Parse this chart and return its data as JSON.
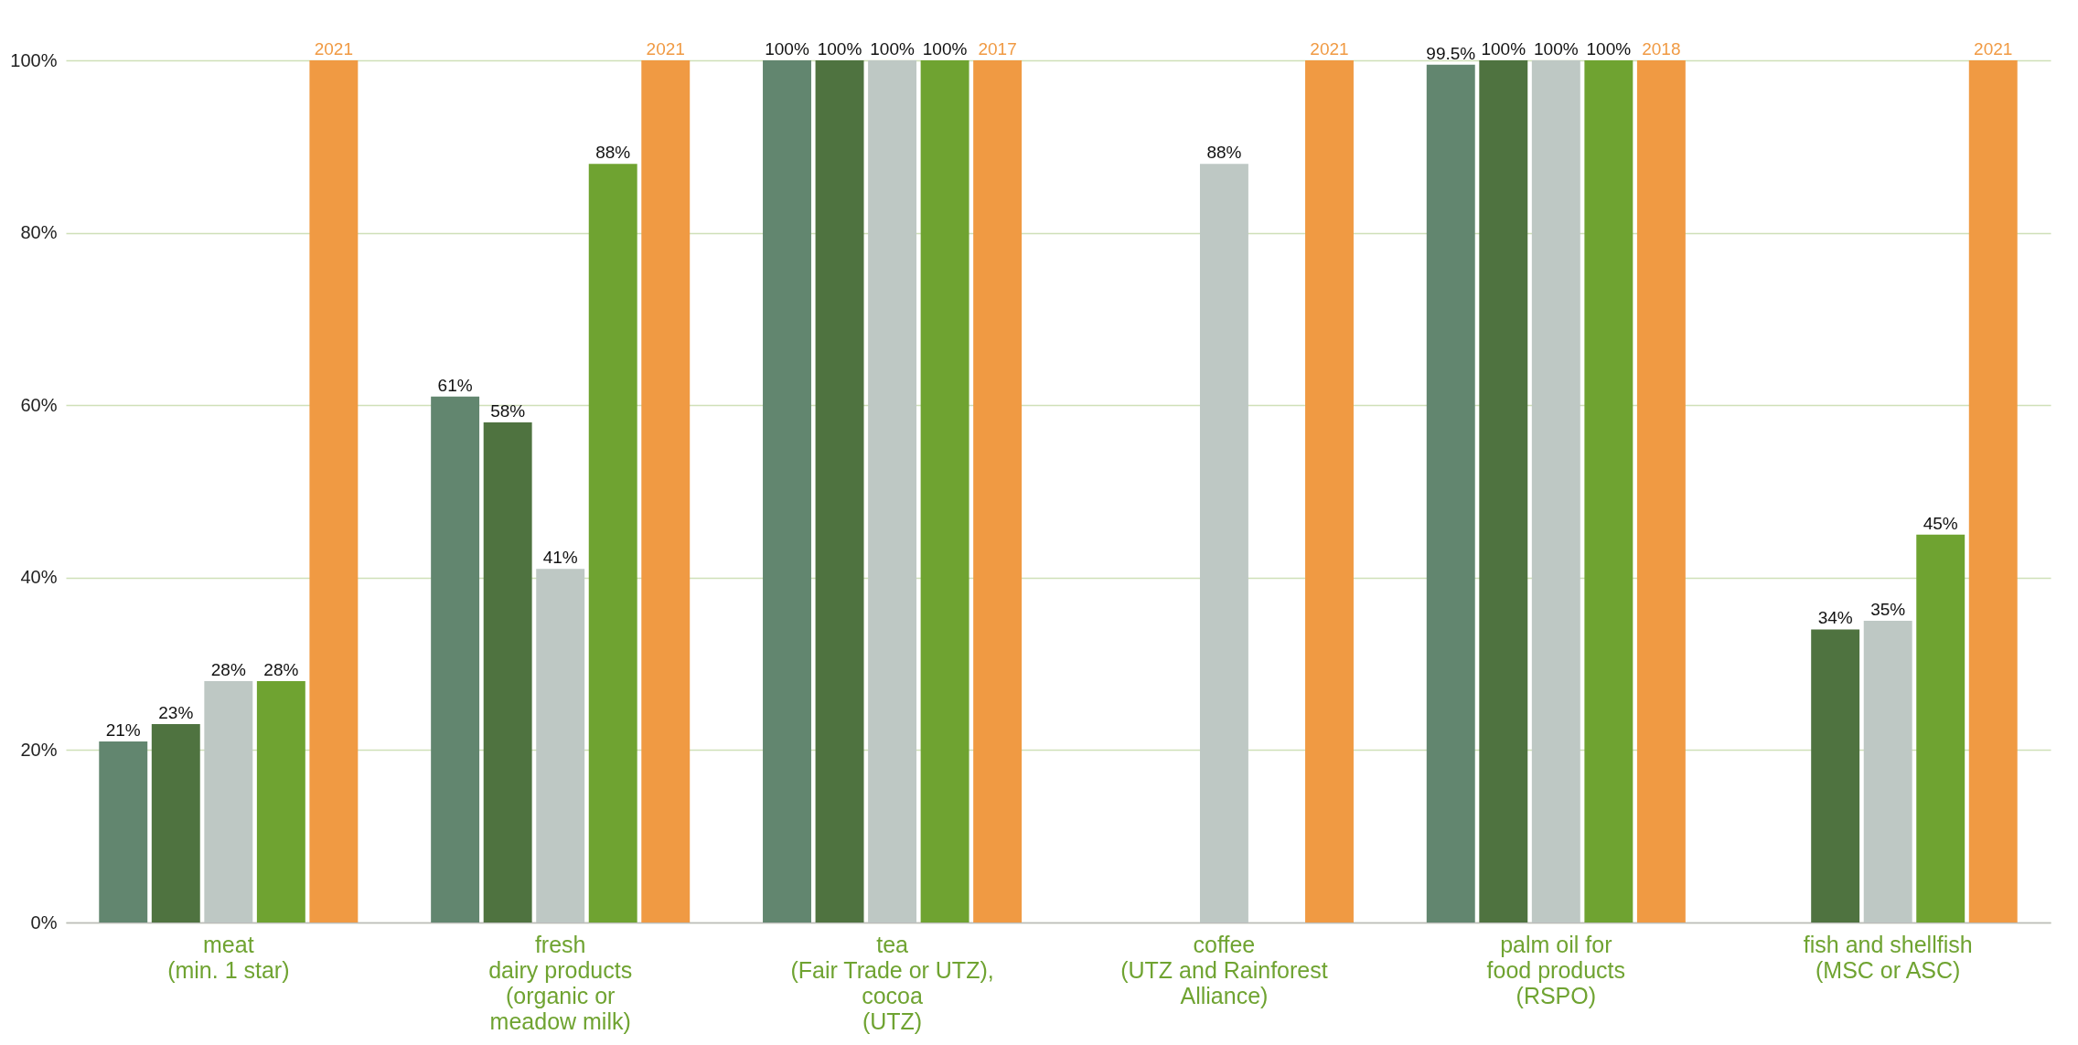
{
  "chart_data": {
    "type": "bar",
    "categories": [
      "meat\n(min. 1 star)",
      "fresh\ndairy products\n(organic or\nmeadow milk)",
      "tea\n(Fair Trade or UTZ),\ncocoa\n(UTZ)",
      "coffee\n(UTZ and Rainforest\nAlliance)",
      "palm oil for\nfood products\n(RSPO)",
      "fish and shellfish\n(MSC or ASC)"
    ],
    "series": [
      {
        "color": "#62866f",
        "values": [
          21,
          61,
          100,
          null,
          99.5,
          null
        ],
        "value_labels": [
          "21%",
          "61%",
          "100%",
          null,
          "99.5%",
          null
        ]
      },
      {
        "color": "#4f7340",
        "values": [
          23,
          58,
          100,
          null,
          100,
          34
        ],
        "value_labels": [
          "23%",
          "58%",
          "100%",
          null,
          "100%",
          "34%"
        ]
      },
      {
        "color": "#bec8c4",
        "values": [
          28,
          41,
          100,
          88,
          100,
          35
        ],
        "value_labels": [
          "28%",
          "41%",
          "100%",
          "88%",
          "100%",
          "35%"
        ]
      },
      {
        "color": "#6fa331",
        "values": [
          28,
          88,
          100,
          null,
          100,
          45
        ],
        "value_labels": [
          "28%",
          "88%",
          "100%",
          null,
          "100%",
          "45%"
        ]
      },
      {
        "color": "#f09a43",
        "values": [
          100,
          100,
          100,
          100,
          100,
          100
        ]
      }
    ],
    "annotations": [
      "2021",
      "2021",
      "2017",
      "2021",
      "2018",
      "2021"
    ],
    "ylim": [
      0,
      100
    ],
    "yticks": [
      {
        "value": 0,
        "label": "0%"
      },
      {
        "value": 20,
        "label": "20%"
      },
      {
        "value": 40,
        "label": "40%"
      },
      {
        "value": 60,
        "label": "60%"
      },
      {
        "value": 80,
        "label": "80%"
      },
      {
        "value": 100,
        "label": "100%"
      }
    ],
    "grid": "y"
  }
}
